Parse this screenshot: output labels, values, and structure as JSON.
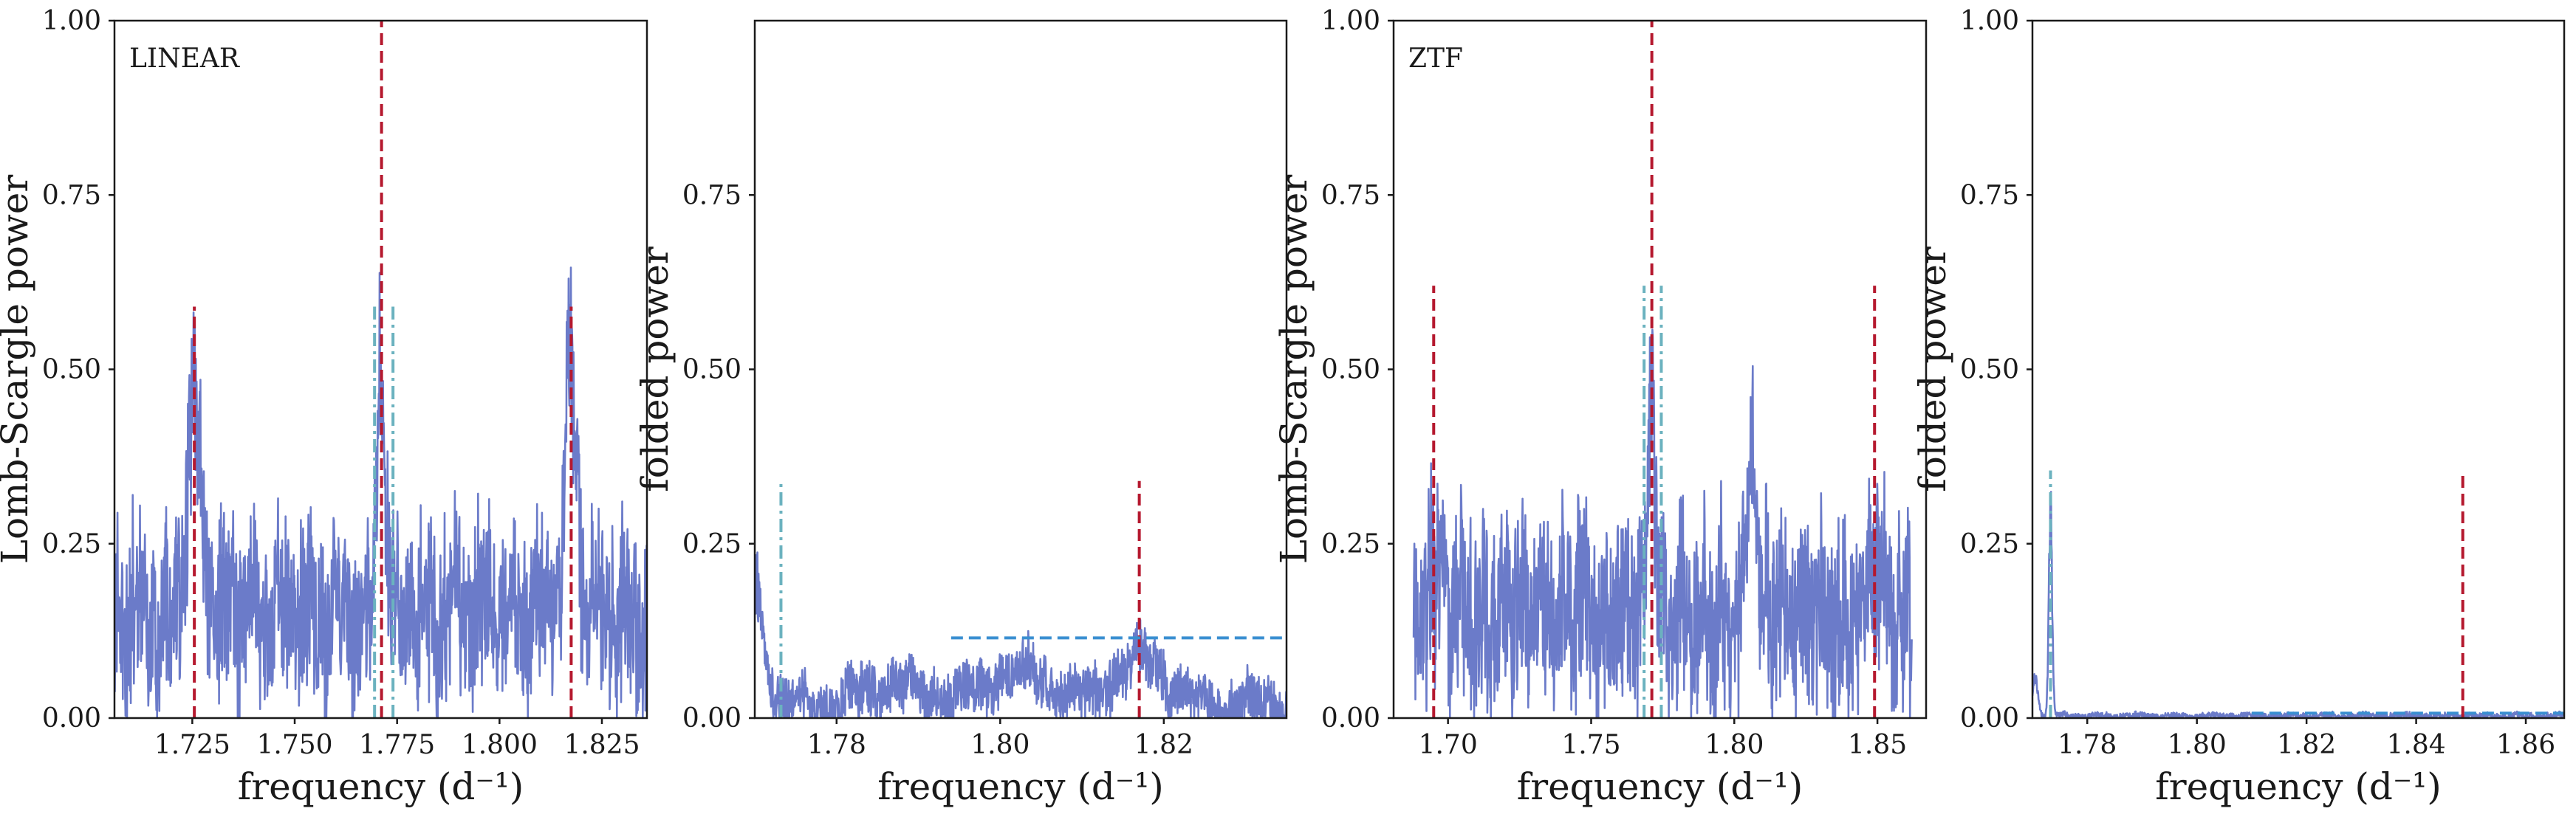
{
  "figure": {
    "colors": {
      "periodogram": "#6b7bc9",
      "peak_marker": "#b5182e",
      "alias_marker": "#6bb2bf",
      "threshold": "#3a8fd1",
      "axes": "#1a1a1a"
    }
  },
  "chart_data": [
    {
      "type": "line",
      "panel": "LINEAR periodogram",
      "tag": "LINEAR",
      "xlabel": "frequency (d⁻¹)",
      "ylabel": "Lomb-Scargle power",
      "xlim": [
        1.706,
        1.836
      ],
      "ylim": [
        0,
        1
      ],
      "xticks": [
        1.725,
        1.75,
        1.775,
        1.8,
        1.825
      ],
      "xtick_labels": [
        "1.725",
        "1.750",
        "1.775",
        "1.800",
        "1.825"
      ],
      "yticks": [
        0,
        0.25,
        0.5,
        0.75,
        1.0
      ],
      "ytick_labels": [
        "0.00",
        "0.25",
        "0.50",
        "0.75",
        "1.00"
      ],
      "series": {
        "baseline": 0.15,
        "peaks": [
          {
            "x": 1.7255,
            "height": 0.33,
            "width": 0.0016
          },
          {
            "x": 1.7712,
            "height": 0.42,
            "width": 0.0009
          },
          {
            "x": 1.8175,
            "height": 0.35,
            "width": 0.0015
          }
        ],
        "noise": 0.09
      },
      "vlines": [
        {
          "kind": "peak",
          "style": "dashed",
          "x": 1.7255,
          "ymax": 0.59
        },
        {
          "kind": "peak",
          "style": "dashed",
          "x": 1.7712,
          "ymax": 1.0
        },
        {
          "kind": "peak",
          "style": "dashed",
          "x": 1.8175,
          "ymax": 0.59
        },
        {
          "kind": "alias",
          "style": "dashdot",
          "x": 1.7695,
          "ymax": 0.59
        },
        {
          "kind": "alias",
          "style": "dashdot",
          "x": 1.774,
          "ymax": 0.59
        }
      ],
      "hlines": []
    },
    {
      "type": "line",
      "panel": "LINEAR folded power",
      "tag": "",
      "xlabel": "frequency (d⁻¹)",
      "ylabel": "folded power",
      "xlim": [
        1.77,
        1.835
      ],
      "ylim": [
        0,
        1
      ],
      "xticks": [
        1.78,
        1.8,
        1.82
      ],
      "xtick_labels": [
        "1.78",
        "1.80",
        "1.82"
      ],
      "yticks": [
        0,
        0.25,
        0.5,
        0.75
      ],
      "ytick_labels": [
        "0.00",
        "0.25",
        "0.50",
        "0.75"
      ],
      "series": {
        "baseline": 0.02,
        "peaks": [
          {
            "x": 1.77,
            "height": 0.18,
            "width": 0.0012
          },
          {
            "x": 1.7875,
            "height": 0.03,
            "width": 0.004
          },
          {
            "x": 1.802,
            "height": 0.05,
            "width": 0.004
          },
          {
            "x": 1.817,
            "height": 0.07,
            "width": 0.003
          }
        ],
        "noise": 0.035
      },
      "vlines": [
        {
          "kind": "alias",
          "style": "dashdot",
          "x": 1.7732,
          "ymax": 0.34
        },
        {
          "kind": "peak",
          "style": "dashed",
          "x": 1.817,
          "ymax": 0.34
        }
      ],
      "hlines": [
        {
          "kind": "threshold",
          "style": "dashed",
          "y": 0.115,
          "xmin": 1.794,
          "xmax": 1.835
        }
      ]
    },
    {
      "type": "line",
      "panel": "ZTF periodogram",
      "tag": "ZTF",
      "xlabel": "frequency (d⁻¹)",
      "ylabel": "Lomb-Scargle power",
      "xlim": [
        1.681,
        1.867
      ],
      "ylim": [
        0,
        1
      ],
      "xticks": [
        1.7,
        1.75,
        1.8,
        1.85
      ],
      "xtick_labels": [
        "1.70",
        "1.75",
        "1.80",
        "1.85"
      ],
      "yticks": [
        0,
        0.25,
        0.5,
        0.75,
        1.0
      ],
      "ytick_labels": [
        "0.00",
        "0.25",
        "0.50",
        "0.75",
        "1.00"
      ],
      "series": {
        "baseline": 0.15,
        "peaks": [
          {
            "x": 1.695,
            "height": 0.1,
            "width": 0.0016
          },
          {
            "x": 1.7712,
            "height": 0.43,
            "width": 0.001
          },
          {
            "x": 1.806,
            "height": 0.28,
            "width": 0.0012
          },
          {
            "x": 1.848,
            "height": 0.1,
            "width": 0.0016
          }
        ],
        "noise": 0.1
      },
      "vlines": [
        {
          "kind": "peak",
          "style": "dashed",
          "x": 1.695,
          "ymax": 0.62
        },
        {
          "kind": "peak",
          "style": "dashed",
          "x": 1.7712,
          "ymax": 1.0
        },
        {
          "kind": "peak",
          "style": "dashed",
          "x": 1.849,
          "ymax": 0.62
        },
        {
          "kind": "alias",
          "style": "dashdot",
          "x": 1.7685,
          "ymax": 0.62
        },
        {
          "kind": "alias",
          "style": "dashdot",
          "x": 1.7745,
          "ymax": 0.62
        }
      ],
      "x_start": 1.688,
      "x_end": 1.862,
      "hlines": []
    },
    {
      "type": "line",
      "panel": "ZTF folded power",
      "tag": "",
      "xlabel": "frequency (d⁻¹)",
      "ylabel": "folded power",
      "xlim": [
        1.77,
        1.867
      ],
      "ylim": [
        0,
        1
      ],
      "xticks": [
        1.78,
        1.8,
        1.82,
        1.84,
        1.86
      ],
      "xtick_labels": [
        "1.78",
        "1.80",
        "1.82",
        "1.84",
        "1.86"
      ],
      "yticks": [
        0,
        0.25,
        0.5,
        0.75,
        1.0
      ],
      "ytick_labels": [
        "0.00",
        "0.25",
        "0.50",
        "0.75",
        "1.00"
      ],
      "series": {
        "baseline": 0.003,
        "peaks": [
          {
            "x": 1.7705,
            "height": 0.06,
            "width": 0.0005
          },
          {
            "x": 1.7733,
            "height": 0.33,
            "width": 0.0003
          }
        ],
        "noise": 0.004
      },
      "vlines": [
        {
          "kind": "alias",
          "style": "dashdot",
          "x": 1.7733,
          "ymax": 0.355
        },
        {
          "kind": "peak",
          "style": "dashed",
          "x": 1.8485,
          "ymax": 0.355
        }
      ],
      "hlines": [
        {
          "kind": "threshold",
          "style": "dashed",
          "y": 0.007,
          "xmin": 1.81,
          "xmax": 1.867
        }
      ]
    }
  ]
}
